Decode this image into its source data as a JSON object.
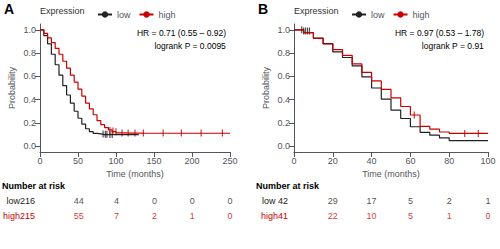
{
  "chart_data": [
    {
      "type": "step",
      "title": "A",
      "annotations": [
        "HR = 0.71 (0.55 – 0.92)",
        "logrank P = 0.0095"
      ],
      "xlabel": "Time (months)",
      "ylabel": "Probability",
      "xlim": [
        0,
        250
      ],
      "ylim": [
        -0.05,
        1.05
      ],
      "xticks": [
        0,
        50,
        100,
        150,
        200,
        250
      ],
      "yticks": [
        {
          "value": 0.0,
          "label": "0.0"
        },
        0.2,
        0.4,
        0.6,
        0.8,
        {
          "value": 1.0,
          "label": "1.0"
        }
      ],
      "grid": false,
      "legend_title": "Expression",
      "series": [
        {
          "name": "low",
          "color": "#222222",
          "x": [
            0,
            5,
            10,
            15,
            20,
            25,
            30,
            35,
            40,
            45,
            50,
            55,
            60,
            65,
            70,
            75,
            80,
            85,
            90,
            95,
            100,
            105,
            110,
            115,
            120,
            125,
            130
          ],
          "values": [
            1.0,
            0.95,
            0.88,
            0.79,
            0.7,
            0.61,
            0.52,
            0.44,
            0.37,
            0.3,
            0.24,
            0.19,
            0.15,
            0.125,
            0.11,
            0.105,
            0.1,
            0.1,
            0.1,
            0.1,
            0.1,
            0.1,
            0.1,
            0.1,
            0.1,
            0.1,
            0.1
          ],
          "censor_x": [
            83,
            86,
            88,
            92,
            95
          ],
          "censor_y": [
            0.105,
            0.103,
            0.102,
            0.101,
            0.1
          ]
        },
        {
          "name": "high",
          "color": "#cc0000",
          "x": [
            0,
            5,
            10,
            15,
            20,
            25,
            30,
            35,
            40,
            45,
            50,
            55,
            60,
            65,
            70,
            75,
            80,
            85,
            90,
            95,
            100,
            110,
            120,
            130,
            140,
            150,
            160,
            180,
            200,
            220,
            240,
            250
          ],
          "values": [
            1.0,
            0.97,
            0.93,
            0.89,
            0.84,
            0.79,
            0.73,
            0.67,
            0.61,
            0.55,
            0.49,
            0.43,
            0.37,
            0.32,
            0.27,
            0.22,
            0.185,
            0.16,
            0.14,
            0.125,
            0.115,
            0.113,
            0.112,
            0.111,
            0.111,
            0.111,
            0.111,
            0.111,
            0.111,
            0.111,
            0.111,
            0.111
          ],
          "censor_x": [
            92,
            96,
            100,
            108,
            116,
            125,
            136,
            162,
            186,
            212,
            240
          ],
          "censor_y": [
            0.135,
            0.13,
            0.125,
            0.113,
            0.113,
            0.113,
            0.113,
            0.113,
            0.113,
            0.113,
            0.113
          ]
        }
      ],
      "risk_table": {
        "title": "Number at risk",
        "times": [
          50,
          100,
          150,
          200,
          250
        ],
        "rows": [
          {
            "label": "low216",
            "color": "#222222",
            "values": [
              44,
              4,
              0,
              0,
              0
            ]
          },
          {
            "label": "high215",
            "color": "#cc0000",
            "values": [
              55,
              7,
              2,
              1,
              0
            ]
          }
        ]
      }
    },
    {
      "type": "step",
      "title": "B",
      "annotations": [
        "HR = 0.97 (0.53 – 1.78)",
        "logrank P = 0.91"
      ],
      "xlabel": "Time (months)",
      "ylabel": "Probability",
      "xlim": [
        0,
        100
      ],
      "ylim": [
        -0.05,
        1.05
      ],
      "xticks": [
        0,
        20,
        40,
        60,
        80,
        100
      ],
      "yticks": [
        {
          "value": 0.0,
          "label": "0.0"
        },
        0.2,
        0.4,
        0.6,
        0.8,
        {
          "value": 1.0,
          "label": "1.0"
        }
      ],
      "grid": false,
      "legend_title": "Expression",
      "series": [
        {
          "name": "low",
          "color": "#222222",
          "x": [
            0,
            5,
            10,
            15,
            20,
            25,
            30,
            35,
            40,
            45,
            50,
            55,
            60,
            65,
            70,
            75,
            80,
            85,
            90,
            95,
            100
          ],
          "values": [
            1.0,
            0.976,
            0.929,
            0.881,
            0.81,
            0.762,
            0.69,
            0.595,
            0.5,
            0.405,
            0.31,
            0.238,
            0.167,
            0.119,
            0.095,
            0.071,
            0.048,
            0.048,
            0.048,
            0.048,
            0.048
          ],
          "censor_x": [
            4,
            5,
            6,
            7,
            8
          ],
          "censor_y": [
            1.0,
            0.99,
            0.99,
            0.99,
            0.99
          ]
        },
        {
          "name": "high",
          "color": "#cc0000",
          "x": [
            0,
            5,
            10,
            15,
            20,
            25,
            30,
            35,
            40,
            45,
            50,
            55,
            60,
            65,
            70,
            75,
            80,
            85,
            90,
            95,
            100
          ],
          "values": [
            1.0,
            0.976,
            0.927,
            0.878,
            0.829,
            0.78,
            0.707,
            0.634,
            0.561,
            0.488,
            0.415,
            0.341,
            0.268,
            0.171,
            0.146,
            0.122,
            0.11,
            0.11,
            0.11,
            0.11,
            0.11
          ],
          "censor_x": [
            62,
            88,
            95
          ],
          "censor_y": [
            0.268,
            0.11,
            0.11
          ]
        }
      ],
      "risk_table": {
        "title": "Number at risk",
        "times": [
          20,
          40,
          60,
          80,
          100
        ],
        "rows": [
          {
            "label": "low 42",
            "color": "#222222",
            "values": [
              29,
              17,
              5,
              2,
              1
            ]
          },
          {
            "label": "high41",
            "color": "#cc0000",
            "values": [
              22,
              10,
              5,
              1,
              0
            ]
          }
        ]
      }
    }
  ]
}
